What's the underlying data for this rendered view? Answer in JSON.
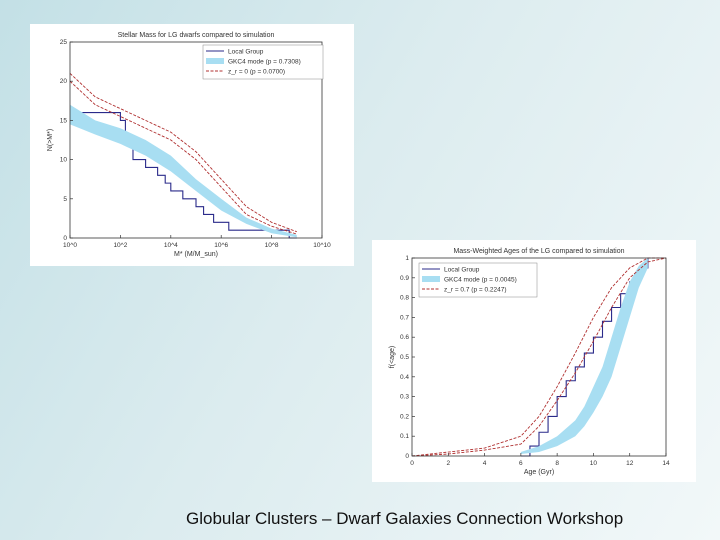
{
  "footer": {
    "text": "Globular Clusters – Dwarf Galaxies Connection Workshop"
  },
  "colors": {
    "observed": "#2a2a8a",
    "model_band": "#a8def2",
    "model_line": "#b03030"
  },
  "chart_data": [
    {
      "type": "line",
      "title": "Stellar Mass for LG dwarfs compared to simulation",
      "xlabel": "M* (M/M_sun)",
      "ylabel": "N(>M*)",
      "x_scale": "log",
      "xlim": [
        1,
        10000000000.0
      ],
      "ylim": [
        0,
        25
      ],
      "x_ticks": [
        1,
        100,
        10000,
        1000000,
        100000000,
        10000000000
      ],
      "x_tick_labels": [
        "10^0",
        "10^2",
        "10^4",
        "10^6",
        "10^8",
        "10^10"
      ],
      "y_ticks": [
        0,
        5,
        10,
        15,
        20,
        25
      ],
      "grid": false,
      "legend_position": "top-right",
      "legend": [
        "Local Group",
        "GKC4 mode (p = 0.7308)",
        "z_r = 0 (p = 0.0700)"
      ],
      "series": [
        {
          "name": "Local Group",
          "style": "step",
          "x": [
            1,
            100,
            158,
            158,
            316,
            316,
            1000,
            1500,
            3000,
            6000,
            10000,
            30000,
            100000,
            200000,
            500000,
            1000000,
            2000000,
            10000000,
            100000000,
            500000000,
            1000000000
          ],
          "y": [
            16,
            15,
            14,
            13,
            12,
            10,
            9,
            9,
            8,
            7,
            6,
            5,
            4,
            3,
            2,
            2,
            1,
            1,
            1,
            0,
            0
          ]
        },
        {
          "name": "GKC4 mode (p = 0.7308)",
          "style": "band",
          "x": [
            1,
            10,
            100,
            1000,
            10000,
            100000,
            1000000,
            10000000,
            100000000,
            1000000000
          ],
          "lower": [
            14.5,
            13.2,
            12,
            10.5,
            8.5,
            6,
            3.5,
            1.8,
            0.6,
            0.1
          ],
          "upper": [
            17,
            15,
            14,
            12.5,
            10.5,
            7.5,
            5,
            2.6,
            1.2,
            0.4
          ]
        },
        {
          "name": "z_r = 0 (p = 0.0700)",
          "style": "dashed",
          "x": [
            1,
            10,
            100,
            1000,
            10000,
            100000,
            1000000,
            10000000,
            100000000,
            1000000000
          ],
          "y": [
            20,
            17,
            15.5,
            14,
            12.5,
            10,
            6.5,
            3,
            1.5,
            0.5
          ]
        },
        {
          "name": "",
          "style": "dashed",
          "x": [
            1,
            10,
            100,
            1000,
            10000,
            100000,
            1000000,
            10000000,
            100000000,
            1000000000
          ],
          "y": [
            21,
            18,
            16.5,
            15,
            13.5,
            11,
            7.5,
            4,
            2,
            0.8
          ]
        }
      ]
    },
    {
      "type": "line",
      "title": "Mass-Weighted Ages of the LG compared to simulation",
      "xlabel": "Age (Gyr)",
      "ylabel": "f(<age)",
      "xlim": [
        0,
        14
      ],
      "ylim": [
        0,
        1
      ],
      "x_ticks": [
        0,
        2,
        4,
        6,
        8,
        10,
        12,
        14
      ],
      "y_ticks": [
        0,
        0.1,
        0.2,
        0.3,
        0.4,
        0.5,
        0.6,
        0.7,
        0.8,
        0.9,
        1
      ],
      "grid": false,
      "legend_position": "top-left",
      "legend": [
        "Local Group",
        "GKC4 mode (p = 0.0045)",
        "z_r = 0.7 (p = 0.2247)"
      ],
      "series": [
        {
          "name": "Local Group",
          "style": "step",
          "x": [
            6,
            6.5,
            7,
            7.5,
            8,
            8.5,
            9,
            9.5,
            10,
            10.5,
            11,
            11.5,
            12,
            12.5,
            13
          ],
          "y": [
            0,
            0.05,
            0.12,
            0.2,
            0.3,
            0.38,
            0.45,
            0.52,
            0.6,
            0.68,
            0.75,
            0.82,
            0.88,
            0.95,
            1
          ]
        },
        {
          "name": "GKC4 mode (p = 0.0045)",
          "style": "band",
          "x": [
            6,
            7,
            8,
            9,
            9.5,
            10,
            10.5,
            11,
            11.5,
            12,
            12.5,
            13
          ],
          "lower": [
            0.01,
            0.02,
            0.05,
            0.1,
            0.15,
            0.22,
            0.3,
            0.4,
            0.55,
            0.7,
            0.85,
            0.95
          ],
          "upper": [
            0.02,
            0.05,
            0.1,
            0.18,
            0.25,
            0.35,
            0.45,
            0.6,
            0.75,
            0.88,
            0.96,
            1
          ]
        },
        {
          "name": "z_r = 0.7 (p = 0.2247)",
          "style": "dashed",
          "x": [
            0,
            2,
            4,
            6,
            7,
            8,
            9,
            10,
            11,
            12,
            13,
            14
          ],
          "y": [
            0,
            0.01,
            0.03,
            0.06,
            0.15,
            0.28,
            0.42,
            0.58,
            0.75,
            0.9,
            0.98,
            1
          ]
        },
        {
          "name": "",
          "style": "dashed",
          "x": [
            0,
            2,
            4,
            6,
            7,
            8,
            9,
            10,
            11,
            12,
            13,
            14
          ],
          "y": [
            0,
            0.02,
            0.04,
            0.1,
            0.2,
            0.35,
            0.52,
            0.7,
            0.85,
            0.95,
            1,
            1
          ]
        }
      ]
    }
  ]
}
